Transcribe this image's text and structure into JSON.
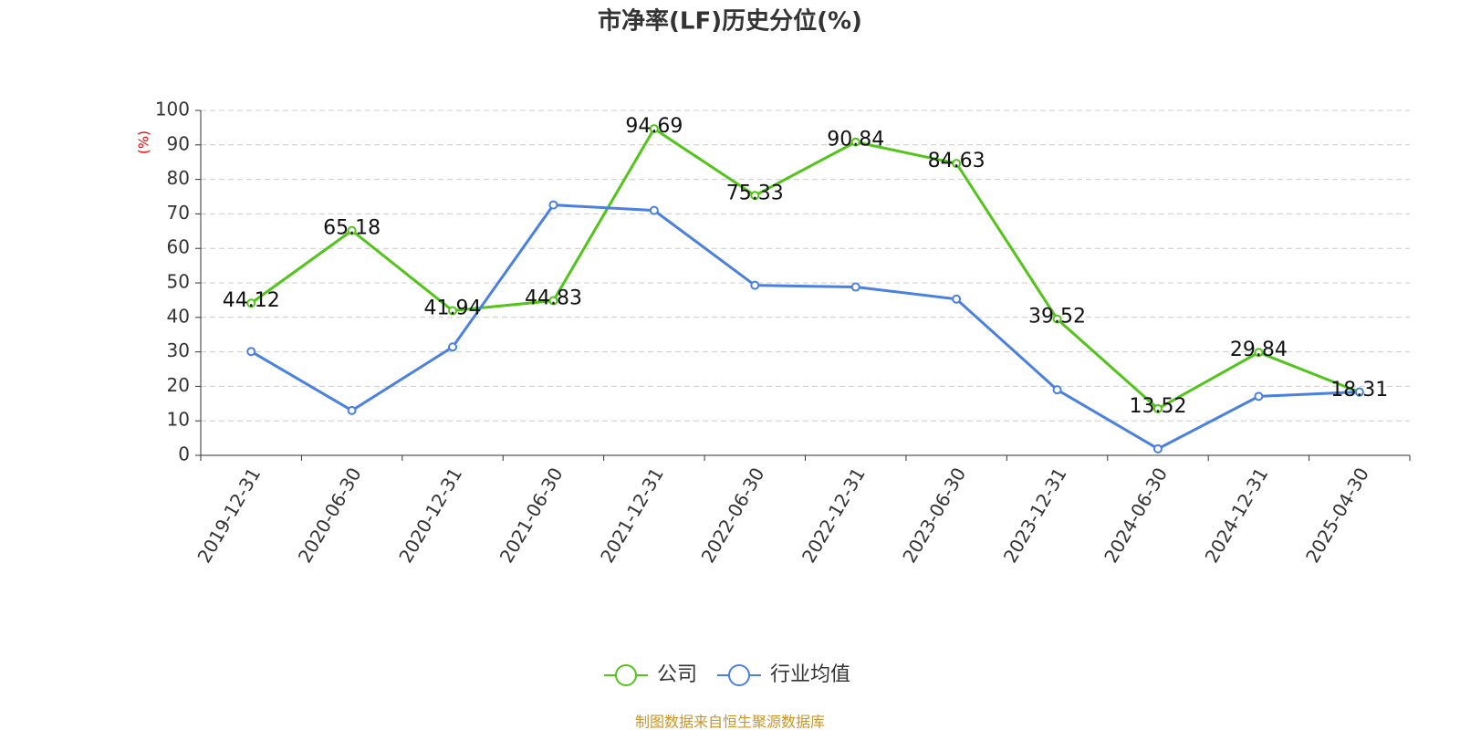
{
  "chart_data": {
    "type": "line",
    "title": "市净率(LF)历史分位(%)",
    "y_axis_label": "(%)",
    "categories": [
      "2019-12-31",
      "2020-06-30",
      "2020-12-31",
      "2021-06-30",
      "2021-12-31",
      "2022-06-30",
      "2022-12-31",
      "2023-06-30",
      "2023-12-31",
      "2024-06-30",
      "2024-12-31",
      "2025-04-30"
    ],
    "series": [
      {
        "name": "公司",
        "color": "#52c41a",
        "show_labels": true,
        "values": [
          44.12,
          65.18,
          41.94,
          44.83,
          94.69,
          75.33,
          90.84,
          84.63,
          39.52,
          13.52,
          29.84,
          18.31
        ]
      },
      {
        "name": "行业均值",
        "color": "#4a80e0",
        "show_labels": false,
        "values": [
          30.1,
          13.0,
          31.4,
          72.6,
          71.0,
          49.3,
          48.8,
          45.3,
          19.0,
          1.9,
          17.1,
          18.4
        ]
      }
    ],
    "ylim": [
      0,
      100
    ],
    "yticks": [
      0,
      10,
      20,
      30,
      40,
      50,
      60,
      70,
      80,
      90,
      100
    ],
    "grid": true,
    "source": "制图数据来自恒生聚源数据库"
  }
}
